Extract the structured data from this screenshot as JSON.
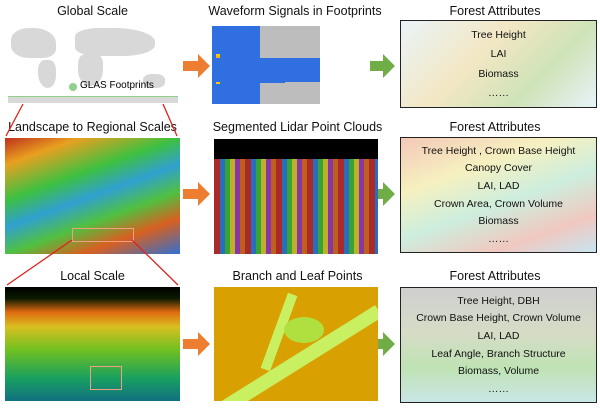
{
  "rows": [
    {
      "left_title": "Global Scale",
      "middle_title": "Waveform Signals in Footprints",
      "right_title": "Forest Attributes",
      "legend": "GLAS Footprints",
      "attributes": [
        "Tree Height",
        "LAI",
        "Biomass",
        "……"
      ]
    },
    {
      "left_title": "Landscape to Regional Scales",
      "middle_title": "Segmented Lidar Point Clouds",
      "right_title": "Forest Attributes",
      "attributes": [
        "Tree Height , Crown Base Height",
        "Canopy Cover",
        "LAI, LAD",
        "Crown Area, Crown Volume",
        "Biomass",
        "……"
      ]
    },
    {
      "left_title": "Local Scale",
      "middle_title": "Branch and Leaf Points",
      "right_title": "Forest Attributes",
      "attributes": [
        "Tree Height, DBH",
        "Crown Base Height, Crown Volume",
        "LAI, LAD",
        "Leaf Angle, Branch Structure",
        "Biomass, Volume",
        "……"
      ]
    }
  ],
  "colors": {
    "orange_arrow": "#ed7d31",
    "green_arrow": "#70ad47",
    "zoom_arrow": "#d9261c",
    "footprint": "#8fd18a"
  }
}
